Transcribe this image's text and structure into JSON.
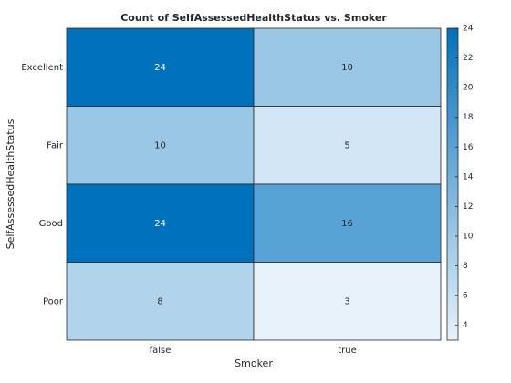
{
  "chart_data": {
    "type": "heatmap",
    "title": "Count of SelfAssessedHealthStatus vs. Smoker",
    "xlabel": "Smoker",
    "ylabel": "SelfAssessedHealthStatus",
    "x_categories": [
      "false",
      "true"
    ],
    "y_categories": [
      "Excellent",
      "Fair",
      "Good",
      "Poor"
    ],
    "values": [
      [
        24,
        10
      ],
      [
        10,
        5
      ],
      [
        24,
        16
      ],
      [
        8,
        3
      ]
    ],
    "colormap": [
      "#e8f2fb",
      "#0072bd"
    ],
    "clim": [
      3,
      24
    ],
    "cticks": [
      4,
      6,
      8,
      10,
      12,
      14,
      16,
      18,
      20,
      22,
      24
    ]
  }
}
